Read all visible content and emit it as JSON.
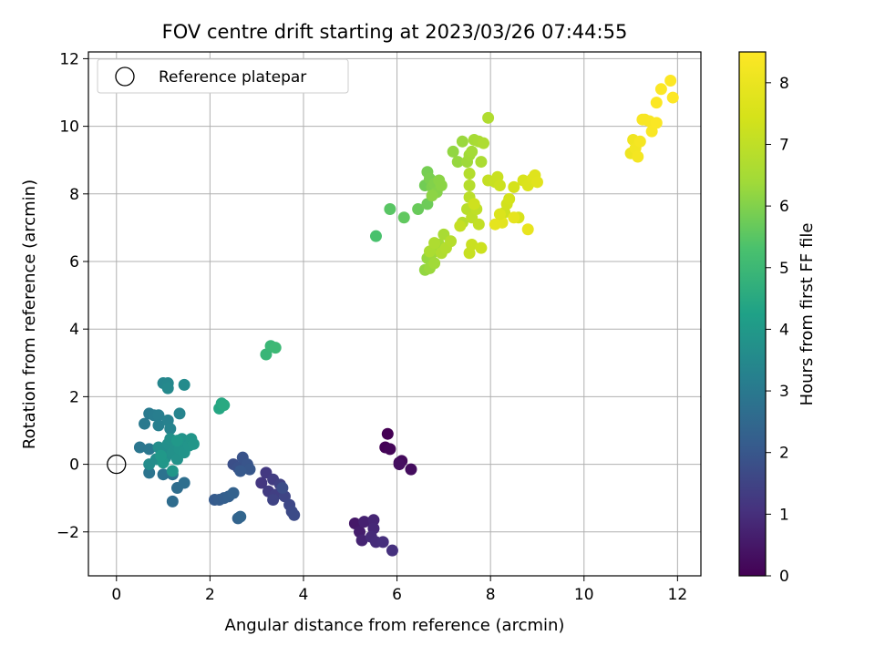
{
  "chart_data": {
    "type": "scatter",
    "title": "FOV centre drift starting at 2023/03/26 07:44:55",
    "xlabel": "Angular distance from reference (arcmin)",
    "ylabel": "Rotation from reference (arcmin)",
    "xlim": [
      -0.6,
      12.5
    ],
    "ylim": [
      -3.3,
      12.2
    ],
    "xticks": [
      0,
      2,
      4,
      6,
      8,
      10,
      12
    ],
    "yticks": [
      -2,
      0,
      2,
      4,
      6,
      8,
      10,
      12
    ],
    "grid": true,
    "legend": {
      "position": "top-left",
      "entries": [
        "Reference platepar"
      ]
    },
    "reference_point": [
      0,
      0
    ],
    "colorbar": {
      "label": "Hours from first FF file",
      "range": [
        0,
        8.5
      ],
      "ticks": [
        0,
        1,
        2,
        3,
        4,
        5,
        6,
        7,
        8
      ],
      "colormap": "viridis"
    },
    "points": [
      [
        5.8,
        0.9,
        0.0
      ],
      [
        5.75,
        0.5,
        0.05
      ],
      [
        5.85,
        0.45,
        0.1
      ],
      [
        6.05,
        0.05,
        0.15
      ],
      [
        6.1,
        0.1,
        0.2
      ],
      [
        6.3,
        -0.15,
        0.25
      ],
      [
        6.05,
        -0.0,
        0.3
      ],
      [
        5.1,
        -1.75,
        0.5
      ],
      [
        5.2,
        -2.0,
        0.6
      ],
      [
        5.3,
        -1.7,
        0.7
      ],
      [
        5.25,
        -2.25,
        0.75
      ],
      [
        5.5,
        -1.65,
        0.8
      ],
      [
        5.5,
        -1.9,
        0.85
      ],
      [
        5.45,
        -2.15,
        0.9
      ],
      [
        5.55,
        -2.3,
        0.95
      ],
      [
        5.7,
        -2.3,
        1.0
      ],
      [
        5.9,
        -2.55,
        1.05
      ],
      [
        3.1,
        -0.55,
        1.2
      ],
      [
        3.2,
        -0.25,
        1.25
      ],
      [
        3.25,
        -0.8,
        1.3
      ],
      [
        3.35,
        -0.45,
        1.35
      ],
      [
        3.4,
        -0.9,
        1.4
      ],
      [
        3.5,
        -0.6,
        1.45
      ],
      [
        3.35,
        -1.05,
        1.5
      ],
      [
        3.6,
        -0.95,
        1.55
      ],
      [
        3.7,
        -1.2,
        1.6
      ],
      [
        3.75,
        -1.4,
        1.65
      ],
      [
        3.8,
        -1.5,
        1.7
      ],
      [
        3.55,
        -0.7,
        1.75
      ],
      [
        2.5,
        0.0,
        1.8
      ],
      [
        2.6,
        -0.1,
        1.85
      ],
      [
        2.7,
        0.2,
        1.9
      ],
      [
        2.8,
        0.0,
        1.95
      ],
      [
        2.85,
        -0.15,
        2.0
      ],
      [
        2.65,
        -0.2,
        2.05
      ],
      [
        2.1,
        -1.05,
        2.1
      ],
      [
        2.2,
        -1.05,
        2.15
      ],
      [
        2.3,
        -1.0,
        2.2
      ],
      [
        2.4,
        -0.95,
        2.25
      ],
      [
        2.5,
        -0.85,
        2.3
      ],
      [
        2.6,
        -1.6,
        2.35
      ],
      [
        2.65,
        -1.55,
        2.4
      ],
      [
        1.2,
        -1.1,
        2.6
      ],
      [
        1.3,
        -0.7,
        2.65
      ],
      [
        1.45,
        -0.55,
        2.7
      ],
      [
        1.2,
        -0.3,
        2.75
      ],
      [
        1.0,
        -0.3,
        2.8
      ],
      [
        0.7,
        -0.25,
        2.85
      ],
      [
        0.5,
        0.5,
        2.9
      ],
      [
        0.7,
        0.45,
        2.95
      ],
      [
        0.6,
        1.2,
        3.0
      ],
      [
        0.7,
        1.5,
        3.05
      ],
      [
        0.8,
        1.45,
        3.1
      ],
      [
        0.9,
        1.45,
        3.15
      ],
      [
        0.9,
        1.15,
        3.2
      ],
      [
        1.1,
        1.3,
        3.25
      ],
      [
        1.15,
        1.05,
        3.3
      ],
      [
        1.35,
        1.5,
        3.35
      ],
      [
        1.0,
        2.4,
        3.4
      ],
      [
        1.1,
        2.4,
        3.45
      ],
      [
        1.1,
        2.25,
        3.5
      ],
      [
        1.45,
        2.35,
        3.55
      ],
      [
        0.7,
        0.0,
        3.6
      ],
      [
        0.85,
        0.15,
        3.62
      ],
      [
        0.9,
        0.5,
        3.64
      ],
      [
        1.0,
        0.4,
        3.66
      ],
      [
        1.05,
        0.2,
        3.68
      ],
      [
        1.1,
        0.6,
        3.7
      ],
      [
        1.15,
        0.75,
        3.72
      ],
      [
        1.2,
        0.35,
        3.74
      ],
      [
        1.25,
        0.6,
        3.76
      ],
      [
        1.3,
        0.15,
        3.78
      ],
      [
        1.35,
        0.45,
        3.8
      ],
      [
        1.4,
        0.75,
        3.82
      ],
      [
        1.45,
        0.35,
        3.84
      ],
      [
        1.55,
        0.55,
        3.86
      ],
      [
        1.6,
        0.75,
        3.88
      ],
      [
        1.65,
        0.6,
        3.9
      ],
      [
        1.2,
        -0.2,
        3.92
      ],
      [
        1.0,
        0.05,
        3.94
      ],
      [
        1.3,
        0.7,
        3.96
      ],
      [
        0.95,
        0.25,
        3.98
      ],
      [
        2.2,
        1.65,
        4.4
      ],
      [
        2.25,
        1.8,
        4.45
      ],
      [
        2.3,
        1.75,
        4.5
      ],
      [
        3.2,
        3.25,
        4.9
      ],
      [
        3.3,
        3.5,
        4.95
      ],
      [
        3.4,
        3.45,
        5.0
      ],
      [
        5.55,
        6.75,
        5.3
      ],
      [
        5.85,
        7.55,
        5.5
      ],
      [
        6.15,
        7.3,
        5.6
      ],
      [
        6.45,
        7.55,
        5.7
      ],
      [
        6.65,
        7.7,
        5.75
      ],
      [
        6.6,
        8.25,
        5.8
      ],
      [
        6.65,
        8.65,
        5.85
      ],
      [
        6.7,
        8.45,
        5.9
      ],
      [
        6.75,
        8.2,
        5.95
      ],
      [
        6.8,
        8.3,
        6.0
      ],
      [
        6.85,
        8.05,
        6.05
      ],
      [
        6.9,
        8.4,
        6.1
      ],
      [
        6.95,
        8.25,
        6.12
      ],
      [
        6.75,
        7.95,
        6.14
      ],
      [
        6.6,
        5.75,
        6.2
      ],
      [
        6.65,
        6.1,
        6.25
      ],
      [
        6.7,
        5.8,
        6.3
      ],
      [
        6.75,
        6.25,
        6.35
      ],
      [
        6.8,
        5.95,
        6.4
      ],
      [
        6.9,
        6.5,
        6.45
      ],
      [
        6.95,
        6.35,
        6.5
      ],
      [
        7.0,
        6.8,
        6.55
      ],
      [
        6.7,
        6.3,
        6.6
      ],
      [
        6.8,
        6.55,
        6.65
      ],
      [
        6.95,
        6.25,
        6.7
      ],
      [
        7.05,
        6.4,
        6.75
      ],
      [
        7.15,
        6.6,
        6.8
      ],
      [
        7.2,
        9.25,
        6.2
      ],
      [
        7.3,
        8.95,
        6.25
      ],
      [
        7.4,
        9.55,
        6.3
      ],
      [
        7.5,
        8.95,
        6.35
      ],
      [
        7.55,
        9.15,
        6.4
      ],
      [
        7.6,
        9.25,
        6.45
      ],
      [
        7.65,
        9.6,
        6.5
      ],
      [
        7.75,
        9.55,
        6.55
      ],
      [
        7.8,
        8.95,
        6.6
      ],
      [
        7.85,
        9.5,
        6.65
      ],
      [
        7.95,
        10.25,
        6.7
      ],
      [
        7.55,
        8.6,
        6.75
      ],
      [
        7.55,
        8.25,
        6.8
      ],
      [
        7.4,
        7.15,
        6.8
      ],
      [
        7.5,
        7.55,
        6.85
      ],
      [
        7.55,
        7.9,
        6.9
      ],
      [
        7.6,
        7.3,
        6.95
      ],
      [
        7.7,
        7.55,
        7.0
      ],
      [
        7.75,
        7.1,
        7.05
      ],
      [
        7.35,
        7.05,
        7.1
      ],
      [
        7.55,
        6.25,
        7.15
      ],
      [
        7.6,
        6.5,
        7.2
      ],
      [
        7.8,
        6.4,
        7.25
      ],
      [
        7.65,
        7.7,
        7.3
      ],
      [
        7.95,
        8.4,
        7.1
      ],
      [
        8.1,
        8.35,
        7.15
      ],
      [
        8.15,
        8.5,
        7.2
      ],
      [
        8.2,
        8.25,
        7.25
      ],
      [
        8.3,
        7.45,
        7.3
      ],
      [
        8.35,
        7.7,
        7.35
      ],
      [
        8.4,
        7.85,
        7.4
      ],
      [
        8.5,
        8.2,
        7.45
      ],
      [
        8.6,
        7.3,
        7.5
      ],
      [
        8.7,
        8.4,
        7.55
      ],
      [
        8.8,
        8.25,
        7.6
      ],
      [
        8.9,
        8.45,
        7.65
      ],
      [
        8.95,
        8.55,
        7.7
      ],
      [
        9.0,
        8.35,
        7.75
      ],
      [
        8.25,
        7.15,
        7.8
      ],
      [
        8.1,
        7.1,
        7.85
      ],
      [
        8.5,
        7.3,
        7.9
      ],
      [
        8.8,
        6.95,
        7.95
      ],
      [
        8.2,
        7.4,
        7.6
      ],
      [
        11.0,
        9.2,
        8.1
      ],
      [
        11.05,
        9.6,
        8.15
      ],
      [
        11.1,
        9.35,
        8.2
      ],
      [
        11.15,
        9.1,
        8.25
      ],
      [
        11.2,
        9.55,
        8.3
      ],
      [
        11.3,
        10.2,
        8.35
      ],
      [
        11.4,
        10.15,
        8.38
      ],
      [
        11.45,
        9.85,
        8.4
      ],
      [
        11.55,
        10.1,
        8.42
      ],
      [
        11.55,
        10.7,
        8.44
      ],
      [
        11.65,
        11.1,
        8.46
      ],
      [
        11.85,
        11.35,
        8.48
      ],
      [
        11.9,
        10.85,
        8.5
      ],
      [
        11.25,
        10.2,
        8.36
      ]
    ]
  }
}
